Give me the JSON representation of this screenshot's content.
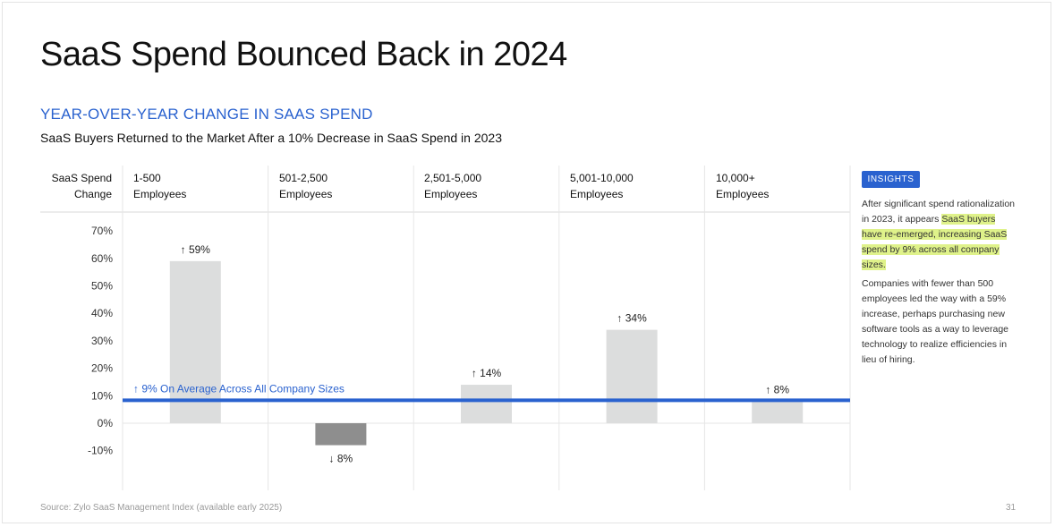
{
  "page": {
    "title": "SaaS Spend Bounced Back in 2024",
    "section_title": "YEAR-OVER-YEAR CHANGE IN SAAS SPEND",
    "subtitle": "SaaS Buyers Returned to the Market After a 10% Decrease in SaaS Spend in 2023",
    "source": "Source: Zylo SaaS Management Index (available early 2025)",
    "page_number": "31"
  },
  "table_header": {
    "row_label": [
      "SaaS Spend",
      "Change"
    ],
    "columns": [
      [
        "1-500",
        "Employees"
      ],
      [
        "501-2,500",
        "Employees"
      ],
      [
        "2,501-5,000",
        "Employees"
      ],
      [
        "5,001-10,000",
        "Employees"
      ],
      [
        "10,000+",
        "Employees"
      ]
    ]
  },
  "chart_data": {
    "type": "bar",
    "categories": [
      "1-500 Employees",
      "501-2,500 Employees",
      "2,501-5,000 Employees",
      "5,001-10,000 Employees",
      "10,000+ Employees"
    ],
    "values": [
      59,
      -8,
      14,
      34,
      8
    ],
    "data_labels": [
      "↑ 59%",
      "↓ 8%",
      "↑ 14%",
      "↑ 34%",
      "↑ 8%"
    ],
    "y_ticks": [
      "70%",
      "60%",
      "50%",
      "40%",
      "30%",
      "20%",
      "10%",
      "0%",
      "-10%"
    ],
    "y_tick_values": [
      70,
      60,
      50,
      40,
      30,
      20,
      10,
      0,
      -10
    ],
    "ylim": [
      -10,
      70
    ],
    "grid": "vertical column dividers",
    "reference_line": {
      "value": 9,
      "label": "↑ 9% On Average Across All Company Sizes",
      "color": "#2a62cf"
    },
    "colors": {
      "positive_bar": "#dcdddd",
      "negative_bar": "#8e8e8e"
    }
  },
  "insights": {
    "badge": "INSIGHTS",
    "p1_before": "After significant spend rationalization in 2023, it appears ",
    "p1_highlight": "SaaS buyers have re-emerged, increasing SaaS spend by 9% across all company sizes.",
    "p2": "Companies with fewer than 500 employees led the way with a 59% increase, perhaps purchasing new software tools as a way to leverage technology to realize efficiencies in lieu of hiring."
  }
}
